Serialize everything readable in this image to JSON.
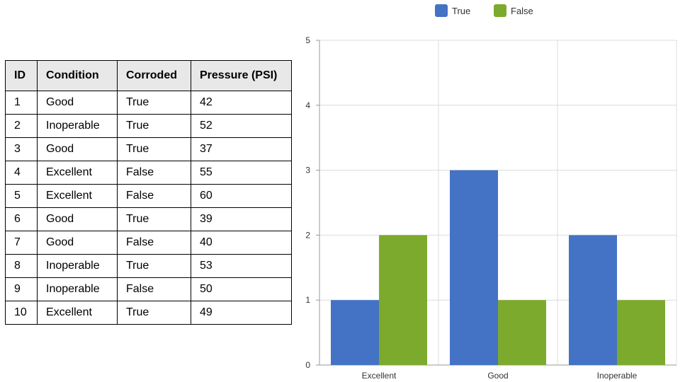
{
  "table": {
    "headers": [
      "ID",
      "Condition",
      "Corroded",
      "Pressure (PSI)"
    ],
    "rows": [
      [
        "1",
        "Good",
        "True",
        "42"
      ],
      [
        "2",
        "Inoperable",
        "True",
        "52"
      ],
      [
        "3",
        "Good",
        "True",
        "37"
      ],
      [
        "4",
        "Excellent",
        "False",
        "55"
      ],
      [
        "5",
        "Excellent",
        "False",
        "60"
      ],
      [
        "6",
        "Good",
        "True",
        "39"
      ],
      [
        "7",
        "Good",
        "False",
        "40"
      ],
      [
        "8",
        "Inoperable",
        "True",
        "53"
      ],
      [
        "9",
        "Inoperable",
        "False",
        "50"
      ],
      [
        "10",
        "Excellent",
        "True",
        "49"
      ]
    ]
  },
  "chart_data": {
    "type": "bar",
    "categories": [
      "Excellent",
      "Good",
      "Inoperable"
    ],
    "series": [
      {
        "name": "True",
        "values": [
          1,
          3,
          2
        ],
        "color": "#4472c4"
      },
      {
        "name": "False",
        "values": [
          2,
          1,
          1
        ],
        "color": "#7caa2d"
      }
    ],
    "ylim": [
      0,
      5
    ],
    "yticks": [
      "0",
      "1",
      "2",
      "3",
      "4",
      "5"
    ],
    "grid": true,
    "legend": "top"
  }
}
